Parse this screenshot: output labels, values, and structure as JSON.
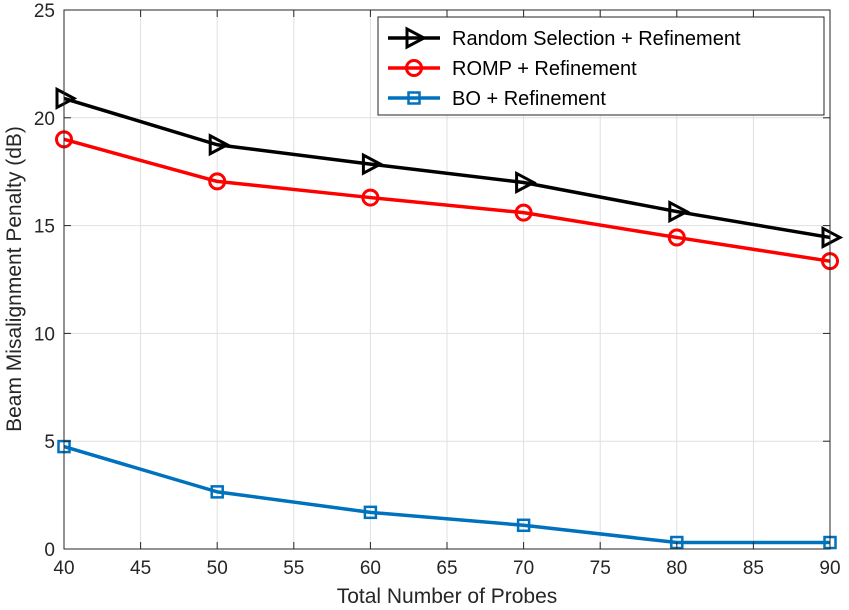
{
  "chart_data": {
    "type": "line",
    "title": "",
    "xlabel": "Total Number of Probes",
    "ylabel": "Beam Misalignment Penalty (dB)",
    "xlim": [
      40,
      90
    ],
    "ylim": [
      0,
      25
    ],
    "xticks": [
      40,
      45,
      50,
      55,
      60,
      65,
      70,
      75,
      80,
      85,
      90
    ],
    "yticks": [
      0,
      5,
      10,
      15,
      20,
      25
    ],
    "grid": true,
    "legend_position": "top-right",
    "x": [
      40,
      50,
      60,
      70,
      80,
      90
    ],
    "series": [
      {
        "name": "Random Selection + Refinement",
        "color": "#000000",
        "marker": "triangle-right",
        "values": [
          20.9,
          18.75,
          17.85,
          17.0,
          15.65,
          14.45
        ]
      },
      {
        "name": "ROMP + Refinement",
        "color": "#ff0000",
        "marker": "circle",
        "values": [
          19.0,
          17.05,
          16.3,
          15.6,
          14.45,
          13.35
        ]
      },
      {
        "name": "BO + Refinement",
        "color": "#0072bd",
        "marker": "square",
        "values": [
          4.75,
          2.65,
          1.7,
          1.1,
          0.3,
          0.3
        ]
      }
    ]
  }
}
